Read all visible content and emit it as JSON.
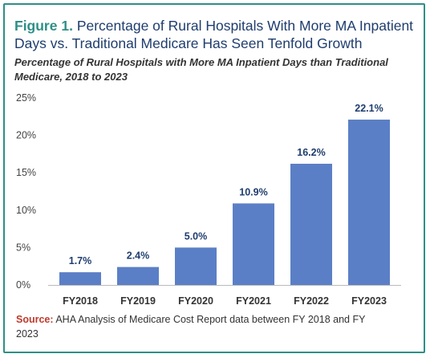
{
  "figure": {
    "prefix": "Figure 1.",
    "title": "Percentage of Rural Hospitals With More MA Inpatient Days vs. Traditional Medicare Has Seen Tenfold Growth",
    "subtitle": "Percentage of Rural Hospitals with More MA Inpatient Days than Traditional Medicare, 2018 to 2023"
  },
  "source": {
    "label": "Source:",
    "text": "AHA Analysis of Medicare Cost Report data between FY 2018 and FY 2023"
  },
  "colors": {
    "bar": "#5B7FC6",
    "accent": "#2E8F86",
    "title": "#1F3D6E",
    "source_label": "#C0392B"
  },
  "chart_data": {
    "type": "bar",
    "title": "Percentage of Rural Hospitals with More MA Inpatient Days than Traditional Medicare, 2018 to 2023",
    "xlabel": "",
    "ylabel": "",
    "categories": [
      "FY2018",
      "FY2019",
      "FY2020",
      "FY2021",
      "FY2022",
      "FY2023"
    ],
    "values": [
      1.7,
      2.4,
      5.0,
      10.9,
      16.2,
      22.1
    ],
    "value_labels": [
      "1.7%",
      "2.4%",
      "5.0%",
      "10.9%",
      "16.2%",
      "22.1%"
    ],
    "ylim": [
      0,
      25
    ],
    "yticks": [
      0,
      5,
      10,
      15,
      20,
      25
    ],
    "ytick_labels": [
      "0%",
      "5%",
      "10%",
      "15%",
      "20%",
      "25%"
    ],
    "grid": false,
    "legend": "none"
  }
}
